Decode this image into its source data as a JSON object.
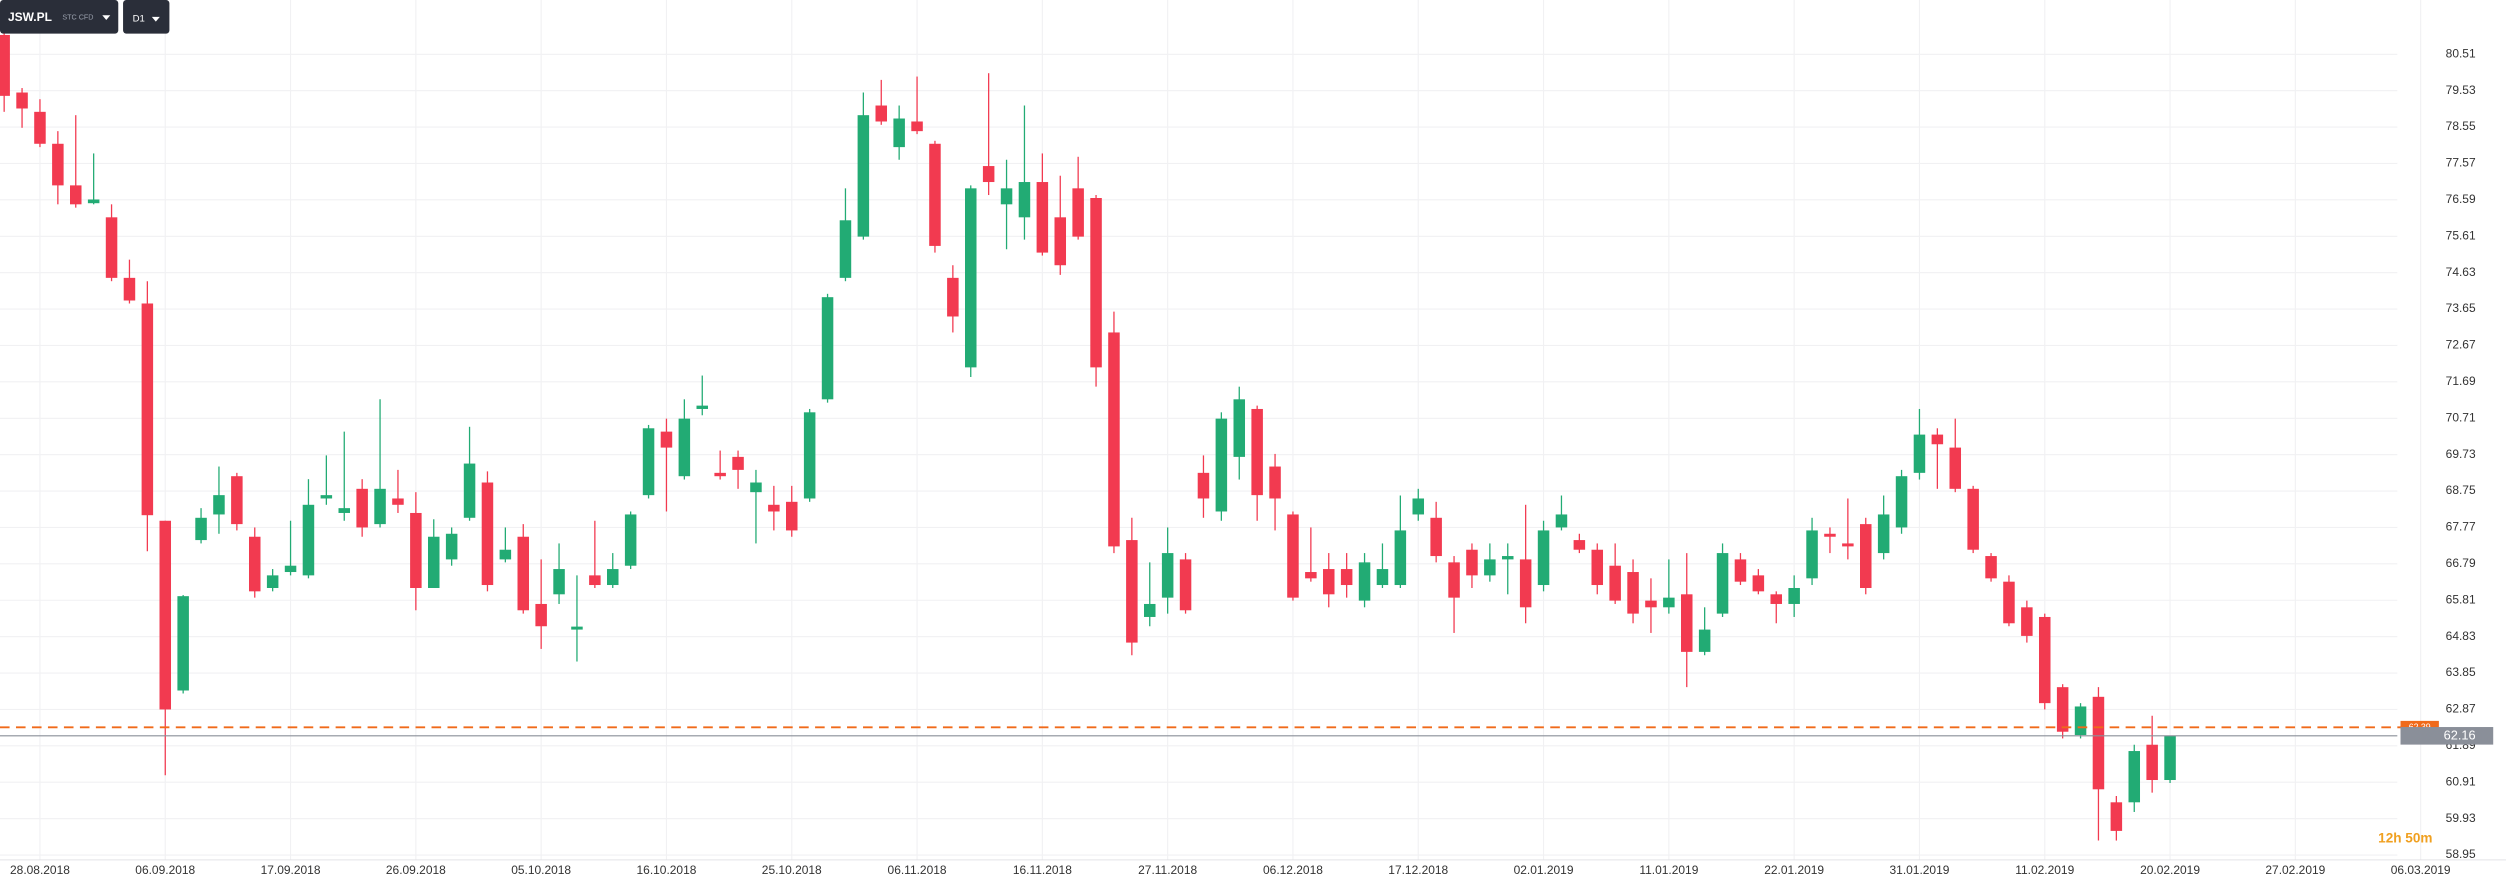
{
  "chart_data": {
    "type": "candlestick",
    "symbol": "JSW.PL",
    "symbol_tag": "STC CFD",
    "timeframe": "D1",
    "timer": "12h 50m",
    "up_color": "#22ab74",
    "down_color": "#f23a50",
    "grid": true,
    "ylim": [
      58.82,
      81.97
    ],
    "yticks": [
      80.51,
      79.53,
      78.55,
      77.57,
      76.59,
      75.61,
      74.63,
      73.65,
      72.67,
      71.69,
      70.71,
      69.73,
      68.75,
      67.77,
      66.79,
      65.81,
      64.83,
      63.85,
      62.87,
      61.89,
      60.91,
      59.93,
      58.95
    ],
    "current_price": {
      "value": 62.16,
      "color": "#8a8f99"
    },
    "marker_line": {
      "value": 62.39,
      "color": "#f06a1a"
    },
    "categories": [
      null,
      null,
      "28.08.2018",
      null,
      null,
      null,
      null,
      null,
      null,
      "06.09.2018",
      null,
      null,
      null,
      null,
      null,
      null,
      "17.09.2018",
      null,
      null,
      null,
      null,
      null,
      null,
      "26.09.2018",
      null,
      null,
      null,
      null,
      null,
      null,
      "05.10.2018",
      null,
      null,
      null,
      null,
      null,
      null,
      "16.10.2018",
      null,
      null,
      null,
      null,
      null,
      null,
      "25.10.2018",
      null,
      null,
      null,
      null,
      null,
      null,
      "06.11.2018",
      null,
      null,
      null,
      null,
      null,
      null,
      "16.11.2018",
      null,
      null,
      null,
      null,
      null,
      null,
      "27.11.2018",
      null,
      null,
      null,
      null,
      null,
      null,
      "06.12.2018",
      null,
      null,
      null,
      null,
      null,
      null,
      "17.12.2018",
      null,
      null,
      null,
      null,
      null,
      null,
      "02.01.2019",
      null,
      null,
      null,
      null,
      null,
      null,
      "11.01.2019",
      null,
      null,
      null,
      null,
      null,
      null,
      "22.01.2019",
      null,
      null,
      null,
      null,
      null,
      null,
      "31.01.2019",
      null,
      null,
      null,
      null,
      null,
      null,
      "11.02.2019",
      null,
      null,
      null,
      null,
      null,
      null,
      "20.02.2019",
      null,
      null,
      null,
      null,
      null,
      null,
      "27.02.2019",
      null,
      null,
      null,
      null,
      null,
      null,
      "06.03.2019"
    ],
    "open": [
      81.03,
      79.48,
      78.96,
      78.1,
      76.98,
      76.5,
      76.12,
      74.49,
      73.8,
      67.95,
      63.38,
      67.43,
      68.12,
      69.15,
      67.52,
      66.14,
      66.57,
      66.48,
      68.55,
      68.16,
      68.81,
      67.86,
      68.55,
      68.16,
      66.14,
      66.91,
      68.03,
      68.98,
      66.91,
      67.52,
      65.71,
      65.97,
      65.02,
      66.48,
      66.22,
      66.74,
      68.64,
      70.35,
      69.15,
      70.96,
      69.24,
      69.67,
      68.72,
      68.38,
      68.46,
      68.55,
      71.22,
      74.49,
      75.6,
      79.13,
      78.01,
      78.7,
      78.1,
      74.49,
      72.08,
      77.5,
      76.47,
      76.12,
      77.07,
      76.12,
      76.9,
      76.64,
      73.02,
      67.43,
      65.36,
      65.88,
      66.91,
      69.24,
      68.2,
      69.67,
      70.96,
      69.41,
      68.12,
      66.57,
      66.65,
      66.65,
      65.8,
      66.22,
      66.22,
      68.12,
      68.03,
      66.83,
      67.17,
      66.48,
      66.91,
      66.91,
      66.22,
      67.77,
      67.43,
      67.17,
      66.74,
      66.57,
      65.8,
      65.62,
      65.97,
      64.42,
      65.45,
      66.91,
      66.48,
      65.97,
      65.71,
      66.4,
      67.6,
      67.34,
      67.86,
      67.08,
      67.77,
      69.24,
      70.27,
      69.92,
      68.81,
      67.0,
      66.31,
      65.62,
      65.36,
      63.47,
      62.18,
      63.21,
      60.37,
      60.37,
      61.92,
      60.97,
      null,
      null,
      null,
      null,
      null,
      null,
      null,
      null,
      null,
      null,
      null,
      null,
      null,
      null
    ],
    "high": [
      81.15,
      79.6,
      79.3,
      78.44,
      78.87,
      77.84,
      76.47,
      74.98,
      74.4,
      67.95,
      65.95,
      68.29,
      69.41,
      69.24,
      67.77,
      66.65,
      67.95,
      69.07,
      69.71,
      70.35,
      69.07,
      71.22,
      69.32,
      68.72,
      67.99,
      67.77,
      70.48,
      69.28,
      67.77,
      67.86,
      66.91,
      67.34,
      66.48,
      67.95,
      67.08,
      68.2,
      70.53,
      70.7,
      71.22,
      71.86,
      69.84,
      69.84,
      69.32,
      68.89,
      68.89,
      70.96,
      74.06,
      76.9,
      79.48,
      79.82,
      79.13,
      79.91,
      78.18,
      74.83,
      76.98,
      80.0,
      77.67,
      79.13,
      77.84,
      77.24,
      77.75,
      76.72,
      73.58,
      68.03,
      66.83,
      67.77,
      67.08,
      69.71,
      70.87,
      71.56,
      71.05,
      69.75,
      68.2,
      67.77,
      67.08,
      67.08,
      67.08,
      67.34,
      68.63,
      68.81,
      68.46,
      67.0,
      67.34,
      67.34,
      67.34,
      68.38,
      67.95,
      68.63,
      67.6,
      67.34,
      67.34,
      66.91,
      66.4,
      66.91,
      67.08,
      65.62,
      67.34,
      67.08,
      66.65,
      66.05,
      66.48,
      68.03,
      67.77,
      68.55,
      68.03,
      68.63,
      69.32,
      70.96,
      70.44,
      70.7,
      68.89,
      67.08,
      66.48,
      65.8,
      65.45,
      63.55,
      63.04,
      63.47,
      60.54,
      61.92,
      62.7,
      62.16,
      null,
      null,
      null,
      null,
      null,
      null,
      null,
      null,
      null,
      null,
      null,
      null,
      null,
      null
    ],
    "low": [
      78.96,
      78.53,
      78.01,
      76.47,
      76.38,
      76.47,
      74.4,
      73.8,
      67.13,
      61.1,
      63.3,
      67.34,
      67.6,
      67.69,
      65.88,
      66.05,
      66.48,
      66.4,
      68.38,
      67.95,
      67.52,
      67.77,
      68.16,
      65.54,
      66.14,
      66.74,
      67.95,
      66.05,
      66.83,
      65.45,
      64.5,
      65.71,
      64.16,
      66.14,
      66.14,
      66.65,
      68.55,
      68.2,
      69.06,
      70.79,
      69.06,
      68.81,
      67.34,
      67.69,
      67.52,
      68.46,
      71.13,
      74.4,
      75.52,
      78.61,
      77.67,
      78.36,
      75.17,
      73.02,
      71.82,
      76.72,
      75.26,
      75.52,
      75.09,
      74.57,
      75.52,
      71.56,
      67.08,
      64.33,
      65.11,
      65.45,
      65.45,
      68.03,
      67.95,
      69.06,
      67.95,
      67.69,
      65.8,
      66.31,
      65.62,
      65.88,
      65.62,
      66.14,
      66.14,
      67.95,
      66.83,
      64.93,
      66.14,
      66.31,
      65.97,
      65.19,
      66.05,
      67.69,
      67.08,
      65.97,
      65.71,
      65.19,
      64.93,
      65.45,
      63.47,
      64.33,
      65.36,
      66.22,
      65.97,
      65.19,
      65.36,
      66.22,
      67.08,
      66.91,
      65.97,
      66.91,
      67.6,
      69.06,
      68.81,
      68.72,
      67.08,
      66.31,
      65.11,
      64.67,
      62.87,
      62.09,
      62.09,
      59.34,
      59.34,
      60.11,
      60.63,
      60.89,
      null,
      null,
      null,
      null,
      null,
      null,
      null,
      null,
      null,
      null,
      null,
      null,
      null,
      null
    ],
    "close": [
      79.39,
      79.05,
      78.1,
      76.98,
      76.47,
      76.6,
      74.49,
      73.88,
      68.1,
      62.87,
      65.92,
      68.03,
      68.64,
      67.86,
      66.05,
      66.48,
      66.74,
      68.38,
      68.64,
      68.29,
      67.77,
      68.81,
      68.38,
      66.14,
      67.52,
      67.6,
      69.49,
      66.22,
      67.17,
      65.54,
      65.11,
      66.65,
      65.1,
      66.22,
      66.65,
      68.12,
      70.44,
      69.92,
      70.7,
      71.05,
      69.15,
      69.32,
      68.98,
      68.2,
      67.69,
      70.87,
      73.97,
      76.04,
      78.87,
      78.7,
      78.78,
      78.44,
      75.35,
      73.45,
      76.9,
      77.07,
      76.9,
      77.07,
      75.17,
      74.83,
      75.6,
      72.08,
      67.26,
      64.67,
      65.71,
      67.08,
      65.54,
      68.55,
      70.7,
      71.22,
      68.64,
      68.55,
      65.88,
      66.4,
      65.97,
      66.22,
      66.83,
      66.65,
      67.69,
      68.55,
      67.0,
      65.88,
      66.48,
      66.91,
      67.0,
      65.62,
      67.69,
      68.12,
      67.17,
      66.22,
      65.8,
      65.45,
      65.62,
      65.88,
      64.42,
      65.02,
      67.08,
      66.31,
      66.05,
      65.71,
      66.14,
      67.69,
      67.52,
      67.26,
      66.14,
      68.12,
      69.15,
      70.27,
      70.01,
      68.81,
      67.17,
      66.4,
      65.19,
      64.85,
      63.04,
      62.27,
      62.95,
      60.72,
      59.6,
      61.75,
      60.97,
      62.16,
      null,
      null,
      null,
      null,
      null,
      null,
      null,
      null,
      null,
      null,
      null,
      null,
      null,
      null
    ]
  }
}
